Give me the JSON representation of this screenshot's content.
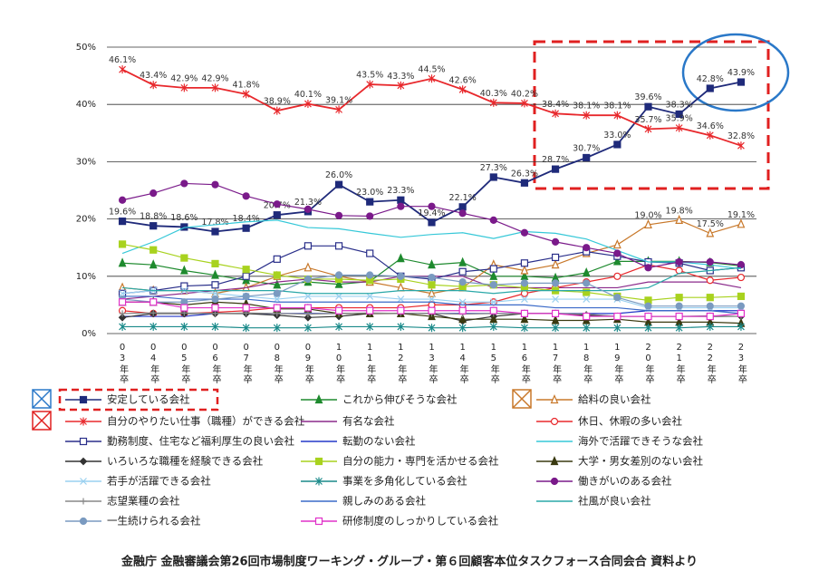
{
  "chart_data": {
    "type": "line",
    "categories": [
      "03年卒",
      "04年卒",
      "05年卒",
      "06年卒",
      "07年卒",
      "08年卒",
      "09年卒",
      "10年卒",
      "11年卒",
      "12年卒",
      "13年卒",
      "14年卒",
      "15年卒",
      "16年卒",
      "17年卒",
      "18年卒",
      "19年卒",
      "20年卒",
      "21年卒",
      "22年卒",
      "23年卒"
    ],
    "ylim": [
      0,
      50
    ],
    "yticks": [
      {
        "value": 0,
        "label": "0%"
      },
      {
        "value": 10,
        "label": "10%"
      },
      {
        "value": 20,
        "label": "20%"
      },
      {
        "value": 30,
        "label": "30%"
      },
      {
        "value": 40,
        "label": "40%"
      },
      {
        "value": 50,
        "label": "50%"
      }
    ],
    "grid": true,
    "series": [
      {
        "name": "安定している会社",
        "color": "#1f2a7a",
        "marker": "square",
        "values": [
          19.6,
          18.8,
          18.6,
          17.8,
          18.4,
          20.7,
          21.3,
          26.0,
          23.0,
          23.3,
          19.4,
          22.1,
          27.3,
          26.3,
          28.7,
          30.7,
          33.0,
          39.6,
          38.3,
          42.8,
          43.9
        ],
        "value_labels": [
          "19.6%",
          "18.8%",
          "18.6%",
          "17.8%",
          "18.4%",
          "20.7%",
          "21.3%",
          "26.0%",
          "23.0%",
          "23.3%",
          "19.4%",
          "22.1%",
          "27.3%",
          "26.3%",
          "28.7%",
          "30.7%",
          "33.0%",
          "39.6%",
          "38.3%",
          "42.8%",
          "43.9%"
        ]
      },
      {
        "name": "これから伸びそうな会社",
        "color": "#1e8a2e",
        "marker": "triangle",
        "values": [
          12.3,
          12.0,
          11.0,
          10.2,
          9.3,
          8.5,
          9.0,
          8.6,
          9.1,
          13.1,
          12.0,
          12.4,
          10.0,
          10.0,
          9.7,
          10.6,
          12.6,
          12.6,
          12.6,
          12.4,
          11.8
        ]
      },
      {
        "name": "給料の良い会社",
        "color": "#c8782a",
        "marker": "triangleOpen",
        "values": [
          8.0,
          7.5,
          7.5,
          7.0,
          8.0,
          10.0,
          11.5,
          10.0,
          9.0,
          8.0,
          7.0,
          8.0,
          12.0,
          11.0,
          12.0,
          14.0,
          15.5,
          19.0,
          19.8,
          17.5,
          19.1
        ],
        "value_labels": [
          null,
          null,
          null,
          null,
          null,
          null,
          null,
          null,
          null,
          null,
          null,
          null,
          null,
          null,
          null,
          null,
          null,
          "19.0%",
          "19.8%",
          "17.5%",
          "19.1%"
        ]
      },
      {
        "name": "自分のやりたい仕事（職種）ができる会社",
        "color": "#e8282c",
        "marker": "asterisk",
        "values": [
          46.1,
          43.4,
          42.9,
          42.9,
          41.8,
          38.9,
          40.1,
          39.1,
          43.5,
          43.3,
          44.5,
          42.6,
          40.3,
          40.2,
          38.4,
          38.1,
          38.1,
          35.7,
          35.9,
          34.6,
          32.8
        ],
        "value_labels": [
          "46.1%",
          "43.4%",
          "42.9%",
          "42.9%",
          "41.8%",
          "38.9%",
          "40.1%",
          "39.1%",
          "43.5%",
          "43.3%",
          "44.5%",
          "42.6%",
          "40.3%",
          "40.2%",
          "38.4%",
          "38.1%",
          "38.1%",
          "35.7%",
          "35.9%",
          "34.6%",
          "32.8%"
        ]
      },
      {
        "name": "有名な会社",
        "color": "#8b2a8b",
        "marker": "none",
        "values": [
          6.0,
          6.5,
          7.0,
          7.5,
          8.0,
          9.0,
          9.5,
          9.0,
          9.0,
          10.0,
          10.0,
          10.0,
          8.0,
          8.0,
          8.0,
          8.0,
          8.0,
          9.0,
          9.0,
          9.0,
          8.0
        ]
      },
      {
        "name": "休日、休暇の多い会社",
        "color": "#e8282c",
        "marker": "circleOpen",
        "values": [
          4.0,
          3.5,
          3.5,
          3.7,
          4.0,
          4.5,
          4.5,
          4.5,
          4.5,
          4.5,
          5.0,
          5.0,
          5.5,
          7.0,
          8.0,
          9.0,
          10.0,
          12.0,
          11.0,
          9.3,
          9.8
        ]
      },
      {
        "name": "勤務制度、住宅など福利厚生の良い会社",
        "color": "#2a2f8a",
        "marker": "squareOpen",
        "values": [
          7.0,
          7.5,
          8.3,
          8.5,
          10.0,
          13.0,
          15.3,
          15.3,
          14.0,
          10.0,
          9.5,
          10.8,
          11.3,
          12.3,
          13.3,
          14.3,
          13.5,
          12.5,
          12.3,
          11.0,
          11.5
        ]
      },
      {
        "name": "転勤のない会社",
        "color": "#2438c8",
        "marker": "none",
        "values": [
          3.0,
          3.0,
          3.0,
          3.5,
          3.5,
          3.5,
          3.5,
          3.5,
          3.5,
          3.5,
          3.5,
          3.5,
          3.5,
          3.5,
          3.5,
          3.5,
          3.5,
          4.0,
          4.0,
          4.0,
          4.0
        ]
      },
      {
        "name": "海外で活躍できそうな会社",
        "color": "#36c8d8",
        "marker": "none",
        "values": [
          14.0,
          16.0,
          18.5,
          19.0,
          19.5,
          19.8,
          18.5,
          18.3,
          17.5,
          16.8,
          17.3,
          17.6,
          16.6,
          17.8,
          17.5,
          16.5,
          14.5,
          12.5,
          12.5,
          12.0,
          11.3
        ]
      },
      {
        "name": "いろいろな職種を経験できる会社",
        "color": "#333333",
        "marker": "diamond",
        "values": [
          2.8,
          3.5,
          3.5,
          3.5,
          3.5,
          3.2,
          2.8,
          3.0,
          3.5,
          3.5,
          3.5,
          2.2,
          3.0,
          3.5,
          3.5,
          3.2,
          3.0,
          3.0,
          3.0,
          3.0,
          3.0
        ]
      },
      {
        "name": "自分の能力・専門を活かせる会社",
        "color": "#a8d21e",
        "marker": "square",
        "values": [
          15.6,
          14.6,
          13.2,
          12.2,
          11.2,
          10.2,
          9.5,
          9.5,
          9.3,
          9.5,
          8.5,
          8.2,
          8.5,
          8.0,
          7.5,
          7.2,
          6.5,
          5.8,
          6.3,
          6.3,
          6.5
        ]
      },
      {
        "name": "大学・男女差別のない会社",
        "color": "#3a3a10",
        "marker": "triangle",
        "values": [
          5.5,
          5.5,
          5.0,
          5.5,
          5.2,
          4.3,
          4.3,
          3.5,
          3.5,
          3.5,
          3.0,
          2.5,
          2.5,
          2.5,
          2.3,
          2.3,
          2.5,
          2.0,
          2.0,
          2.0,
          1.8
        ]
      },
      {
        "name": "若手が活躍できる会社",
        "color": "#9ad0f0",
        "marker": "x",
        "values": [
          7.0,
          7.5,
          7.5,
          7.0,
          6.5,
          6.0,
          6.5,
          6.5,
          6.5,
          6.0,
          6.0,
          5.5,
          5.5,
          6.0,
          6.0,
          6.0,
          6.0,
          4.5,
          4.5,
          4.5,
          4.5
        ]
      },
      {
        "name": "事業を多角化している会社",
        "color": "#1a8a8a",
        "marker": "asterisk",
        "values": [
          1.2,
          1.2,
          1.2,
          1.2,
          1.0,
          1.0,
          1.0,
          1.2,
          1.2,
          1.2,
          1.0,
          1.0,
          1.2,
          1.0,
          1.0,
          1.0,
          1.0,
          1.0,
          1.0,
          1.2,
          1.2
        ]
      },
      {
        "name": "働きがいのある会社",
        "color": "#7a1a8a",
        "marker": "circle",
        "values": [
          23.3,
          24.5,
          26.2,
          26.0,
          24.0,
          22.6,
          21.7,
          20.6,
          20.5,
          22.2,
          22.2,
          21.0,
          19.8,
          17.6,
          16.0,
          15.0,
          14.0,
          11.5,
          12.5,
          12.5,
          12.0
        ]
      },
      {
        "name": "志望業種の会社",
        "color": "#888888",
        "marker": "plus",
        "values": [
          3.5,
          3.6,
          3.6,
          3.5,
          3.6,
          3.5,
          3.4,
          3.5,
          3.6,
          3.5,
          3.5,
          3.4,
          3.5,
          3.5,
          3.5,
          3.4,
          3.0,
          3.0,
          3.0,
          3.1,
          3.0
        ]
      },
      {
        "name": "親しみのある会社",
        "color": "#3a6ac8",
        "marker": "none",
        "values": [
          6.5,
          6.5,
          6.0,
          6.0,
          6.0,
          5.5,
          5.5,
          5.5,
          5.5,
          5.5,
          5.5,
          5.0,
          5.0,
          5.0,
          4.5,
          4.5,
          4.5,
          4.0,
          4.0,
          4.0,
          3.5
        ]
      },
      {
        "name": "社風が良い会社",
        "color": "#2aa8a8",
        "marker": "none",
        "values": [
          8.0,
          7.5,
          7.5,
          7.5,
          7.5,
          7.5,
          7.0,
          7.0,
          7.0,
          7.5,
          7.5,
          7.5,
          7.0,
          7.5,
          7.5,
          7.5,
          7.5,
          8.0,
          10.5,
          11.0,
          11.5
        ]
      },
      {
        "name": "一生続けられる会社",
        "color": "#7a9ac0",
        "marker": "circle",
        "values": [
          6.0,
          5.5,
          5.5,
          6.0,
          6.5,
          7.0,
          9.5,
          10.2,
          10.2,
          10.0,
          9.8,
          9.0,
          8.5,
          8.8,
          8.8,
          8.8,
          6.3,
          4.8,
          4.8,
          4.8,
          4.8
        ]
      },
      {
        "name": "研修制度のしっかりしている会社",
        "color": "#e030c8",
        "marker": "squareOpen",
        "values": [
          5.5,
          5.5,
          4.5,
          4.5,
          4.5,
          4.5,
          4.5,
          4.0,
          4.0,
          4.0,
          4.0,
          4.0,
          4.0,
          3.5,
          3.5,
          3.0,
          3.0,
          3.0,
          3.0,
          3.0,
          3.5
        ]
      }
    ],
    "source": "金融庁 金融審議会第26回市場制度ワーキング・グループ・第６回顧客本位タスクフォース合同会合 資料より"
  }
}
